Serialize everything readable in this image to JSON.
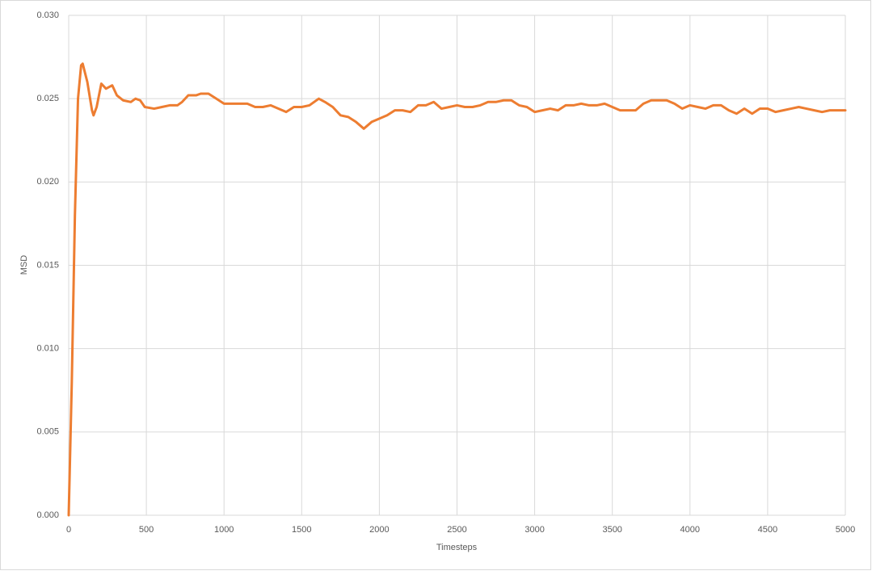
{
  "chart_data": {
    "type": "line",
    "x_label": "Timesteps",
    "y_label": "MSD",
    "x": [
      0,
      20,
      40,
      60,
      80,
      90,
      120,
      150,
      160,
      180,
      210,
      240,
      280,
      310,
      350,
      400,
      430,
      460,
      490,
      550,
      600,
      650,
      700,
      730,
      770,
      820,
      850,
      900,
      950,
      1000,
      1050,
      1100,
      1150,
      1200,
      1250,
      1300,
      1350,
      1400,
      1450,
      1500,
      1550,
      1610,
      1650,
      1700,
      1750,
      1800,
      1850,
      1900,
      1950,
      2000,
      2050,
      2100,
      2150,
      2200,
      2250,
      2300,
      2350,
      2400,
      2450,
      2500,
      2550,
      2600,
      2650,
      2700,
      2750,
      2800,
      2850,
      2900,
      2950,
      3000,
      3050,
      3100,
      3150,
      3200,
      3250,
      3300,
      3350,
      3400,
      3450,
      3500,
      3550,
      3600,
      3650,
      3700,
      3750,
      3800,
      3850,
      3900,
      3950,
      4000,
      4050,
      4100,
      4150,
      4200,
      4250,
      4300,
      4350,
      4400,
      4450,
      4500,
      4550,
      4600,
      4650,
      4700,
      4750,
      4800,
      4850,
      4900,
      4950,
      5000
    ],
    "series": [
      {
        "name": "MSD",
        "color": "#ed7d31",
        "values": [
          0,
          0.008,
          0.018,
          0.025,
          0.027,
          0.0271,
          0.026,
          0.0243,
          0.024,
          0.0245,
          0.0259,
          0.0256,
          0.0258,
          0.0252,
          0.0249,
          0.0248,
          0.025,
          0.0249,
          0.0245,
          0.0244,
          0.0245,
          0.0246,
          0.0246,
          0.0248,
          0.0252,
          0.0252,
          0.0253,
          0.0253,
          0.025,
          0.0247,
          0.0247,
          0.0247,
          0.0247,
          0.0245,
          0.0245,
          0.0246,
          0.0244,
          0.0242,
          0.0245,
          0.0245,
          0.0246,
          0.025,
          0.0248,
          0.0245,
          0.024,
          0.0239,
          0.0236,
          0.0232,
          0.0236,
          0.0238,
          0.024,
          0.0243,
          0.0243,
          0.0242,
          0.0246,
          0.0246,
          0.0248,
          0.0244,
          0.0245,
          0.0246,
          0.0245,
          0.0245,
          0.0246,
          0.0248,
          0.0248,
          0.0249,
          0.0249,
          0.0246,
          0.0245,
          0.0242,
          0.0243,
          0.0244,
          0.0243,
          0.0246,
          0.0246,
          0.0247,
          0.0246,
          0.0246,
          0.0247,
          0.0245,
          0.0243,
          0.0243,
          0.0243,
          0.0247,
          0.0249,
          0.0249,
          0.0249,
          0.0247,
          0.0244,
          0.0246,
          0.0245,
          0.0244,
          0.0246,
          0.0246,
          0.0243,
          0.0241,
          0.0244,
          0.0241,
          0.0244,
          0.0244,
          0.0242,
          0.0243,
          0.0244,
          0.0245,
          0.0244,
          0.0243,
          0.0242,
          0.0243,
          0.0243,
          0.0243
        ]
      }
    ],
    "xlim": [
      0,
      5000
    ],
    "xticks": [
      0,
      500,
      1000,
      1500,
      2000,
      2500,
      3000,
      3500,
      4000,
      4500,
      5000
    ],
    "ylim": [
      0,
      0.03
    ],
    "yticks": [
      {
        "value": 0,
        "label": "0.000"
      },
      {
        "value": 0.005,
        "label": "0.005"
      },
      {
        "value": 0.01,
        "label": "0.010"
      },
      {
        "value": 0.015,
        "label": "0.015"
      },
      {
        "value": 0.02,
        "label": "0.020"
      },
      {
        "value": 0.025,
        "label": "0.025"
      },
      {
        "value": 0.03,
        "label": "0.030"
      }
    ],
    "grid": true
  }
}
